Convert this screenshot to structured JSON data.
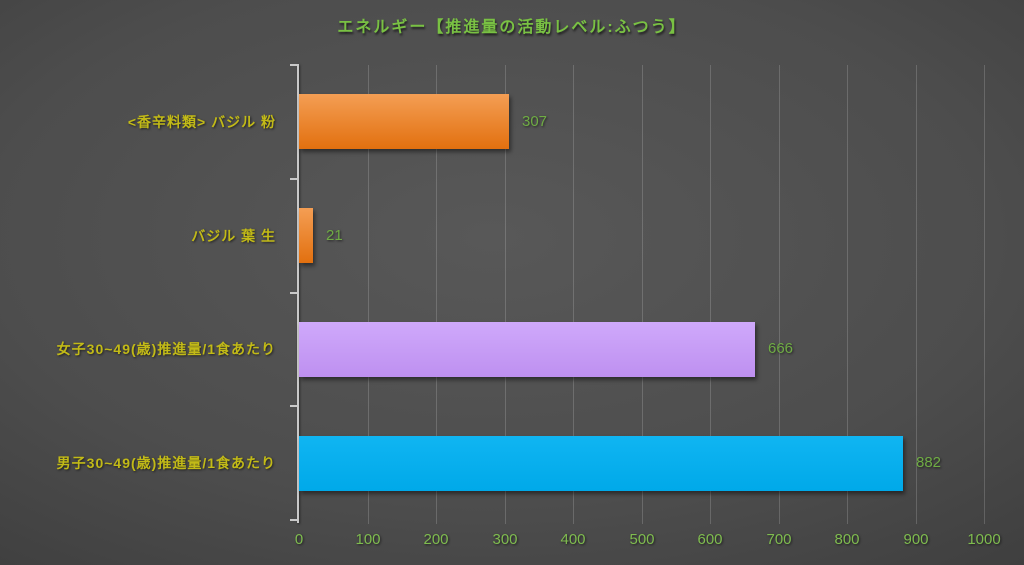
{
  "title": "エネルギー【推進量の活動レベル:ふつう】",
  "chart_data": {
    "type": "bar",
    "orientation": "horizontal",
    "title": "エネルギー【推進量の活動レベル:ふつう】",
    "categories": [
      "<香辛料類> バジル 粉",
      "バジル 葉 生",
      "女子30~49(歳)推進量/1食あたり",
      "男子30~49(歳)推進量/1食あたり"
    ],
    "values": [
      307,
      21,
      666,
      882
    ],
    "bars": [
      {
        "category": "<香辛料類> バジル 粉",
        "value": 307,
        "color_from": "#F49E54",
        "color_to": "#E2700F"
      },
      {
        "category": "バジル 葉 生",
        "value": 21,
        "color_from": "#F49E54",
        "color_to": "#E2700F"
      },
      {
        "category": "女子30~49(歳)推進量/1食あたり",
        "value": 666,
        "color_from": "#CFA9FB",
        "color_to": "#BE90F0"
      },
      {
        "category": "男子30~49(歳)推進量/1食あたり",
        "value": 882,
        "color_from": "#10B5F2",
        "color_to": "#00A9E9"
      }
    ],
    "xlim": [
      0,
      1000
    ],
    "x_ticks": [
      0,
      100,
      200,
      300,
      400,
      500,
      600,
      700,
      800,
      900,
      1000
    ],
    "grid": true,
    "legend": false
  },
  "colors": {
    "title_text": "#79C143",
    "category_text": "#C2BA17",
    "value_text": "#6FAC44",
    "tick_text": "#7FBC4F",
    "axis_line": "#C9C9C9",
    "background_center": "#4d4d4d",
    "background_edge": "#262626"
  }
}
